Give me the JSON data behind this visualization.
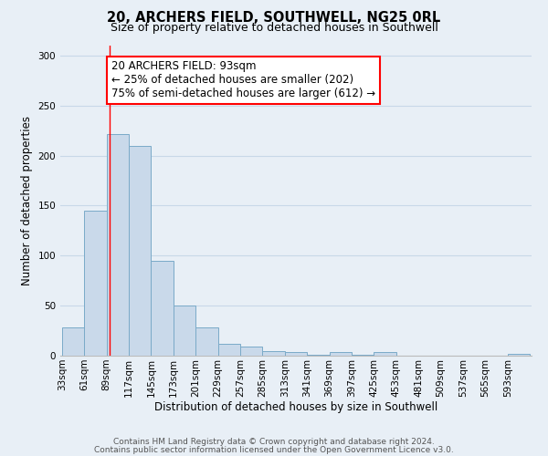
{
  "title": "20, ARCHERS FIELD, SOUTHWELL, NG25 0RL",
  "subtitle": "Size of property relative to detached houses in Southwell",
  "xlabel": "Distribution of detached houses by size in Southwell",
  "ylabel": "Number of detached properties",
  "bar_values": [
    28,
    145,
    222,
    210,
    95,
    50,
    28,
    12,
    9,
    5,
    4,
    1,
    4,
    1,
    4,
    0,
    0,
    0,
    0,
    0,
    2
  ],
  "bin_width": 28,
  "x_tick_labels": [
    "33sqm",
    "61sqm",
    "89sqm",
    "117sqm",
    "145sqm",
    "173sqm",
    "201sqm",
    "229sqm",
    "257sqm",
    "285sqm",
    "313sqm",
    "341sqm",
    "369sqm",
    "397sqm",
    "425sqm",
    "453sqm",
    "481sqm",
    "509sqm",
    "537sqm",
    "565sqm",
    "593sqm"
  ],
  "x_tick_positions": [
    33,
    61,
    89,
    117,
    145,
    173,
    201,
    229,
    257,
    285,
    313,
    341,
    369,
    397,
    425,
    453,
    481,
    509,
    537,
    565,
    593
  ],
  "ylim": [
    0,
    310
  ],
  "yticks": [
    0,
    50,
    100,
    150,
    200,
    250,
    300
  ],
  "bar_color": "#c9d9ea",
  "bar_edge_color": "#7aaac8",
  "grid_color": "#c8d8e8",
  "background_color": "#e8eff6",
  "red_line_x": 93,
  "annotation_box_text": "20 ARCHERS FIELD: 93sqm\n← 25% of detached houses are smaller (202)\n75% of semi-detached houses are larger (612) →",
  "footer_line1": "Contains HM Land Registry data © Crown copyright and database right 2024.",
  "footer_line2": "Contains public sector information licensed under the Open Government Licence v3.0.",
  "title_fontsize": 10.5,
  "subtitle_fontsize": 9,
  "axis_label_fontsize": 8.5,
  "tick_fontsize": 7.5,
  "annotation_fontsize": 8.5,
  "footer_fontsize": 6.5
}
